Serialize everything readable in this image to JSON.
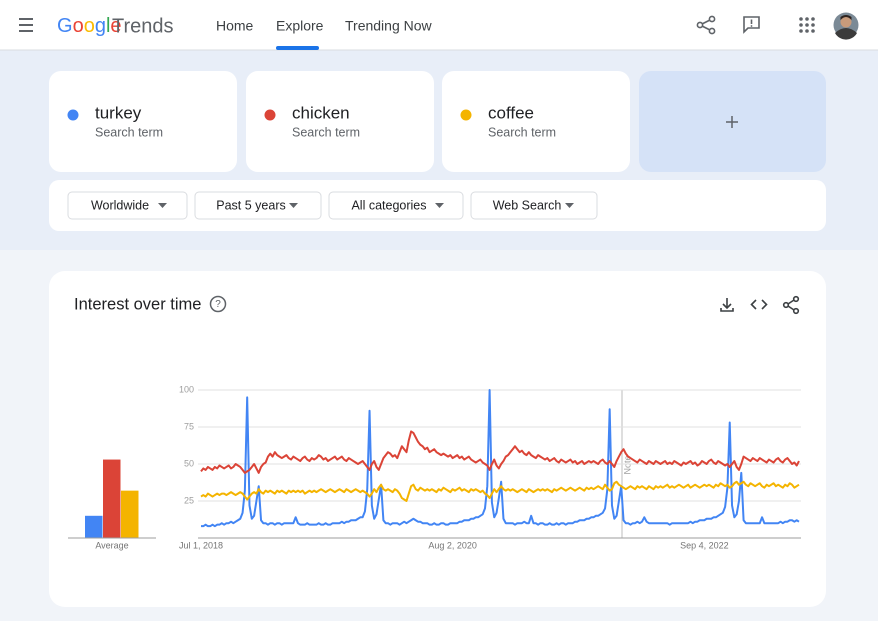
{
  "header": {
    "logo": [
      "Google",
      "Trends"
    ],
    "nav": [
      "Home",
      "Explore",
      "Trending Now"
    ]
  },
  "search_term_subtitles": [
    "Search term",
    "Search term",
    "Search term"
  ],
  "filters": [
    "Worldwide",
    "Past 5 years",
    "All categories",
    "Web Search"
  ],
  "card_title": "Interest over time",
  "chart_data": [
    {
      "type": "bar",
      "categories": [
        "Average"
      ],
      "ylim": [
        0,
        100
      ],
      "series": [
        {
          "color": "#4285f4",
          "values": [
            15
          ]
        },
        {
          "color": "#db4437",
          "values": [
            53
          ]
        },
        {
          "color": "#f4b400",
          "values": [
            32
          ]
        }
      ]
    },
    {
      "type": "line",
      "ylim": [
        0,
        100
      ],
      "yticks": [
        25,
        50,
        75,
        100
      ],
      "grid": true,
      "annotations": [
        "Note"
      ],
      "categories": [
        "Jul 1, 2018",
        null,
        null,
        null,
        null,
        null,
        null,
        null,
        null,
        null,
        null,
        null,
        null,
        null,
        null,
        null,
        null,
        null,
        null,
        null,
        null,
        null,
        null,
        null,
        null,
        null,
        null,
        null,
        null,
        null,
        null,
        null,
        null,
        null,
        null,
        null,
        null,
        null,
        null,
        null,
        null,
        null,
        null,
        null,
        null,
        null,
        null,
        null,
        null,
        null,
        null,
        null,
        null,
        null,
        null,
        null,
        null,
        null,
        null,
        null,
        null,
        null,
        null,
        null,
        null,
        null,
        null,
        null,
        null,
        null,
        null,
        null,
        null,
        null,
        null,
        null,
        null,
        null,
        null,
        null,
        null,
        null,
        null,
        null,
        null,
        null,
        null,
        null,
        null,
        null,
        null,
        null,
        null,
        null,
        null,
        null,
        null,
        null,
        null,
        null,
        null,
        null,
        null,
        null,
        null,
        null,
        null,
        null,
        null,
        "Aug 2, 2020",
        null,
        null,
        null,
        null,
        null,
        null,
        null,
        null,
        null,
        null,
        null,
        null,
        null,
        null,
        null,
        null,
        null,
        null,
        null,
        null,
        null,
        null,
        null,
        null,
        null,
        null,
        null,
        null,
        null,
        null,
        null,
        null,
        null,
        null,
        null,
        null,
        null,
        null,
        null,
        null,
        null,
        null,
        null,
        null,
        null,
        null,
        null,
        null,
        null,
        null,
        null,
        null,
        null,
        null,
        null,
        null,
        null,
        null,
        null,
        null,
        null,
        null,
        null,
        null,
        null,
        null,
        null,
        null,
        null,
        null,
        null,
        null,
        null,
        null,
        null,
        null,
        null,
        null,
        null,
        null,
        null,
        null,
        null,
        null,
        null,
        null,
        null,
        null,
        null,
        null,
        null,
        null,
        null,
        null,
        null,
        null,
        null,
        null,
        null,
        null,
        null,
        null,
        null,
        null,
        null,
        null,
        null,
        null,
        "Sep 4, 2022",
        null,
        null,
        null,
        null,
        null,
        null,
        null,
        null,
        null,
        null,
        null,
        null,
        null,
        null,
        null,
        null,
        null,
        null,
        null,
        null,
        null,
        null,
        null,
        null,
        null,
        null,
        null,
        null,
        null,
        null,
        null,
        null,
        null,
        null,
        null,
        null,
        null,
        null,
        null,
        null,
        null
      ],
      "series": [
        {
          "name": "turkey",
          "color": "#4285f4",
          "values": [
            8,
            8,
            9,
            8,
            8,
            9,
            8,
            9,
            9,
            10,
            9,
            10,
            10,
            11,
            10,
            11,
            12,
            13,
            17,
            32,
            95,
            22,
            13,
            15,
            25,
            35,
            12,
            10,
            10,
            9,
            10,
            10,
            9,
            10,
            10,
            9,
            10,
            10,
            10,
            10,
            10,
            14,
            10,
            9,
            9,
            9,
            10,
            9,
            9,
            9,
            9,
            10,
            9,
            9,
            10,
            9,
            9,
            10,
            10,
            10,
            10,
            11,
            10,
            11,
            11,
            12,
            12,
            12,
            13,
            14,
            14,
            18,
            33,
            86,
            22,
            13,
            16,
            26,
            36,
            12,
            10,
            10,
            9,
            10,
            10,
            10,
            9,
            10,
            11,
            10,
            11,
            12,
            13,
            12,
            11,
            11,
            10,
            10,
            10,
            9,
            9,
            10,
            9,
            9,
            10,
            10,
            9,
            9,
            10,
            10,
            10,
            10,
            11,
            11,
            12,
            12,
            12,
            13,
            13,
            14,
            14,
            15,
            16,
            20,
            35,
            100,
            24,
            14,
            17,
            27,
            38,
            13,
            10,
            10,
            10,
            10,
            9,
            10,
            10,
            10,
            11,
            10,
            10,
            15,
            10,
            10,
            9,
            10,
            10,
            9,
            9,
            10,
            9,
            9,
            10,
            9,
            10,
            10,
            9,
            10,
            10,
            10,
            11,
            11,
            12,
            12,
            12,
            13,
            13,
            14,
            14,
            15,
            15,
            16,
            17,
            20,
            33,
            87,
            22,
            13,
            15,
            25,
            35,
            12,
            10,
            10,
            9,
            10,
            10,
            11,
            10,
            11,
            14,
            11,
            10,
            10,
            10,
            10,
            10,
            10,
            10,
            10,
            10,
            9,
            10,
            10,
            10,
            10,
            10,
            10,
            10,
            10,
            11,
            10,
            11,
            11,
            12,
            12,
            12,
            13,
            13,
            13,
            14,
            14,
            15,
            16,
            17,
            21,
            34,
            78,
            22,
            14,
            16,
            25,
            44,
            12,
            10,
            10,
            10,
            10,
            10,
            10,
            10,
            14,
            10,
            10,
            10,
            10,
            10,
            10,
            10,
            11,
            10,
            11,
            11,
            12,
            12,
            11,
            12,
            11
          ]
        },
        {
          "name": "chicken",
          "color": "#db4437",
          "values": [
            45,
            47,
            46,
            48,
            47,
            46,
            48,
            47,
            49,
            48,
            47,
            48,
            49,
            47,
            48,
            50,
            49,
            48,
            46,
            44,
            45,
            46,
            48,
            50,
            47,
            44,
            48,
            50,
            51,
            55,
            57,
            55,
            58,
            56,
            55,
            54,
            55,
            56,
            54,
            53,
            55,
            54,
            53,
            52,
            54,
            55,
            53,
            52,
            54,
            53,
            54,
            56,
            55,
            53,
            54,
            52,
            53,
            54,
            55,
            53,
            54,
            55,
            53,
            52,
            54,
            53,
            52,
            51,
            50,
            51,
            52,
            50,
            48,
            46,
            50,
            52,
            48,
            46,
            50,
            54,
            56,
            58,
            57,
            55,
            56,
            54,
            58,
            62,
            60,
            58,
            66,
            72,
            71,
            68,
            65,
            63,
            62,
            60,
            61,
            58,
            59,
            60,
            58,
            57,
            56,
            57,
            56,
            55,
            56,
            54,
            55,
            56,
            54,
            55,
            53,
            54,
            55,
            53,
            52,
            51,
            52,
            53,
            51,
            50,
            49,
            46,
            50,
            53,
            49,
            47,
            50,
            52,
            55,
            56,
            58,
            60,
            62,
            60,
            58,
            59,
            57,
            56,
            58,
            56,
            55,
            54,
            56,
            55,
            54,
            53,
            54,
            52,
            53,
            54,
            52,
            51,
            53,
            52,
            51,
            52,
            53,
            51,
            52,
            50,
            51,
            52,
            50,
            51,
            52,
            51,
            52,
            51,
            50,
            52,
            53,
            51,
            50,
            52,
            50,
            48,
            52,
            55,
            58,
            60,
            57,
            55,
            54,
            53,
            52,
            51,
            53,
            52,
            51,
            50,
            52,
            51,
            50,
            52,
            51,
            50,
            51,
            52,
            50,
            51,
            50,
            52,
            51,
            50,
            49,
            51,
            50,
            51,
            52,
            50,
            51,
            49,
            50,
            52,
            51,
            50,
            52,
            53,
            51,
            50,
            52,
            51,
            50,
            49,
            50,
            48,
            50,
            52,
            48,
            46,
            50,
            55,
            54,
            53,
            52,
            54,
            53,
            52,
            54,
            53,
            52,
            51,
            53,
            52,
            51,
            53,
            54,
            52,
            51,
            53,
            54,
            52,
            50,
            51,
            49,
            52
          ]
        },
        {
          "name": "coffee",
          "color": "#f4b400",
          "values": [
            28,
            29,
            28,
            30,
            29,
            28,
            29,
            30,
            29,
            30,
            30,
            29,
            30,
            31,
            30,
            29,
            30,
            31,
            30,
            28,
            26,
            28,
            30,
            31,
            30,
            33,
            31,
            30,
            32,
            31,
            32,
            31,
            30,
            32,
            31,
            32,
            31,
            30,
            32,
            31,
            32,
            31,
            32,
            31,
            32,
            30,
            31,
            32,
            31,
            32,
            31,
            32,
            33,
            32,
            31,
            32,
            33,
            32,
            31,
            32,
            33,
            32,
            31,
            33,
            32,
            31,
            32,
            33,
            32,
            31,
            32,
            31,
            30,
            28,
            30,
            33,
            31,
            34,
            36,
            33,
            32,
            33,
            32,
            31,
            33,
            32,
            30,
            27,
            26,
            25,
            30,
            35,
            36,
            33,
            32,
            34,
            33,
            32,
            33,
            32,
            33,
            32,
            31,
            33,
            32,
            34,
            33,
            32,
            31,
            33,
            32,
            33,
            34,
            32,
            33,
            32,
            31,
            33,
            32,
            33,
            32,
            31,
            32,
            30,
            29,
            27,
            30,
            33,
            31,
            33,
            35,
            33,
            32,
            33,
            32,
            33,
            32,
            31,
            32,
            33,
            32,
            31,
            33,
            32,
            31,
            32,
            33,
            32,
            33,
            32,
            33,
            32,
            31,
            33,
            32,
            33,
            34,
            33,
            32,
            33,
            34,
            33,
            32,
            33,
            34,
            33,
            32,
            34,
            33,
            34,
            33,
            34,
            35,
            34,
            33,
            36,
            34,
            32,
            33,
            37,
            38,
            36,
            35,
            34,
            33,
            34,
            35,
            34,
            33,
            35,
            34,
            35,
            34,
            33,
            35,
            34,
            33,
            35,
            34,
            35,
            34,
            35,
            36,
            34,
            35,
            34,
            35,
            36,
            35,
            34,
            35,
            36,
            34,
            35,
            36,
            35,
            34,
            35,
            36,
            35,
            36,
            35,
            34,
            36,
            35,
            37,
            36,
            35,
            36,
            34,
            35,
            37,
            38,
            36,
            37,
            38,
            36,
            35,
            37,
            36,
            35,
            36,
            37,
            35,
            34,
            36,
            35,
            36,
            37,
            35,
            36,
            35,
            34,
            36,
            35,
            37,
            36,
            34,
            35,
            36
          ]
        }
      ]
    }
  ]
}
